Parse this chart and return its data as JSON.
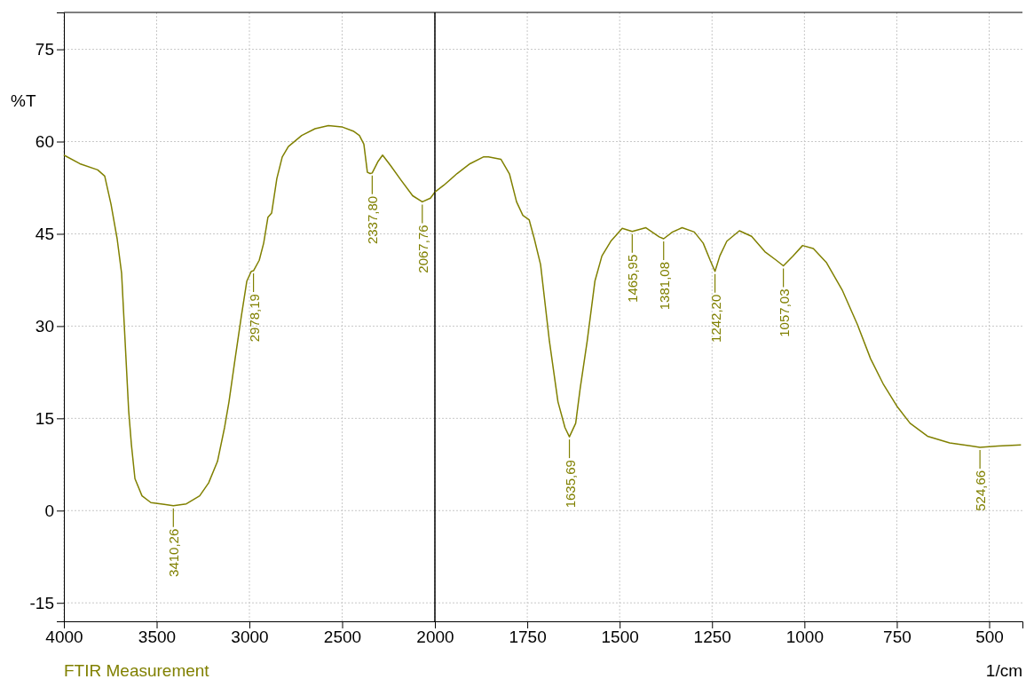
{
  "chart_data": [
    {
      "type": "line",
      "ylabel": "%T",
      "x": [
        4000,
        3914,
        3818,
        3780,
        3746,
        3713,
        3689,
        3670,
        3651,
        3636,
        3617,
        3579,
        3531,
        3459,
        3410,
        3340,
        3268,
        3220,
        3172,
        3134,
        3110,
        3077,
        3043,
        3014,
        2990,
        2978,
        2947,
        2923,
        2900,
        2880,
        2852,
        2823,
        2790,
        2718,
        2646,
        2574,
        2502,
        2440,
        2407,
        2383,
        2364,
        2349,
        2338,
        2306,
        2282,
        2239,
        2182,
        2120,
        2068,
        2024,
        2000
      ],
      "series": [
        {
          "name": "FTIR Measurement",
          "color": "#808000",
          "values": [
            57.8,
            56.4,
            55.4,
            54.4,
            49.8,
            44.2,
            38.6,
            27.5,
            16.3,
            10.7,
            5.2,
            2.4,
            1.3,
            1.0,
            0.8,
            1.1,
            2.4,
            4.5,
            8.0,
            13.5,
            17.7,
            24.7,
            31.7,
            37.3,
            38.9,
            39.0,
            40.7,
            43.5,
            47.7,
            48.4,
            54.0,
            57.5,
            59.2,
            61.0,
            62.1,
            62.6,
            62.4,
            61.7,
            61.0,
            59.6,
            55.0,
            54.8,
            54.9,
            56.8,
            57.8,
            56.1,
            53.7,
            51.2,
            50.2,
            50.8,
            51.8
          ]
        }
      ],
      "xlim": [
        4000,
        2000
      ],
      "xticks": [
        4000,
        3500,
        3000,
        2500,
        2000
      ],
      "ylim": [
        -18,
        81
      ],
      "yticks": [
        -15,
        0,
        15,
        30,
        45,
        60,
        75
      ],
      "grid": true,
      "legend": "bottom left",
      "annotations": [
        {
          "text": "3410,26",
          "x": 3410,
          "y": 0.8
        },
        {
          "text": "2978,19",
          "x": 2978,
          "y": 39.0
        },
        {
          "text": "2337,80",
          "x": 2338,
          "y": 54.9
        },
        {
          "text": "2067,76",
          "x": 2068,
          "y": 50.2
        }
      ]
    },
    {
      "type": "line",
      "xlabel": "1/cm",
      "x": [
        2000,
        1976,
        1940,
        1905,
        1869,
        1855,
        1821,
        1798,
        1779,
        1762,
        1745,
        1731,
        1714,
        1690,
        1667,
        1648,
        1636,
        1619,
        1607,
        1588,
        1567,
        1548,
        1524,
        1493,
        1466,
        1429,
        1393,
        1381,
        1357,
        1331,
        1298,
        1274,
        1255,
        1242,
        1229,
        1210,
        1176,
        1143,
        1107,
        1076,
        1057,
        1031,
        1005,
        976,
        940,
        898,
        857,
        821,
        786,
        750,
        714,
        667,
        607,
        548,
        525,
        476,
        414
      ],
      "series": [
        {
          "color": "#808000",
          "values": [
            51.8,
            52.9,
            54.8,
            56.4,
            57.5,
            57.5,
            57.1,
            54.7,
            50.2,
            48.0,
            47.3,
            44.2,
            40.0,
            27.5,
            17.7,
            13.5,
            12.0,
            14.2,
            19.8,
            27.5,
            37.3,
            41.4,
            43.8,
            45.9,
            45.4,
            46.0,
            44.5,
            44.2,
            45.3,
            46.0,
            45.3,
            43.5,
            40.7,
            38.9,
            41.4,
            43.8,
            45.5,
            44.6,
            42.1,
            40.7,
            39.8,
            41.4,
            43.1,
            42.6,
            40.3,
            35.9,
            30.3,
            24.7,
            20.5,
            17.0,
            14.2,
            12.1,
            11.0,
            10.5,
            10.3,
            10.5,
            10.7
          ]
        }
      ],
      "xlim": [
        2000,
        410
      ],
      "xticks": [
        1750,
        1500,
        1250,
        1000,
        750,
        500
      ],
      "ylim": [
        -18,
        81
      ],
      "yticks": [
        -15,
        0,
        15,
        30,
        45,
        60,
        75
      ],
      "tick_labels": "x",
      "grid": true,
      "annotations": [
        {
          "text": "1635,69",
          "x": 1636,
          "y": 12.0
        },
        {
          "text": "1465,95",
          "x": 1466,
          "y": 45.4
        },
        {
          "text": "1381,08",
          "x": 1381,
          "y": 44.2
        },
        {
          "text": "1242,20",
          "x": 1242,
          "y": 38.9
        },
        {
          "text": "1057,03",
          "x": 1057,
          "y": 39.8
        },
        {
          "text": "524,66",
          "x": 525,
          "y": 10.3
        }
      ]
    }
  ]
}
